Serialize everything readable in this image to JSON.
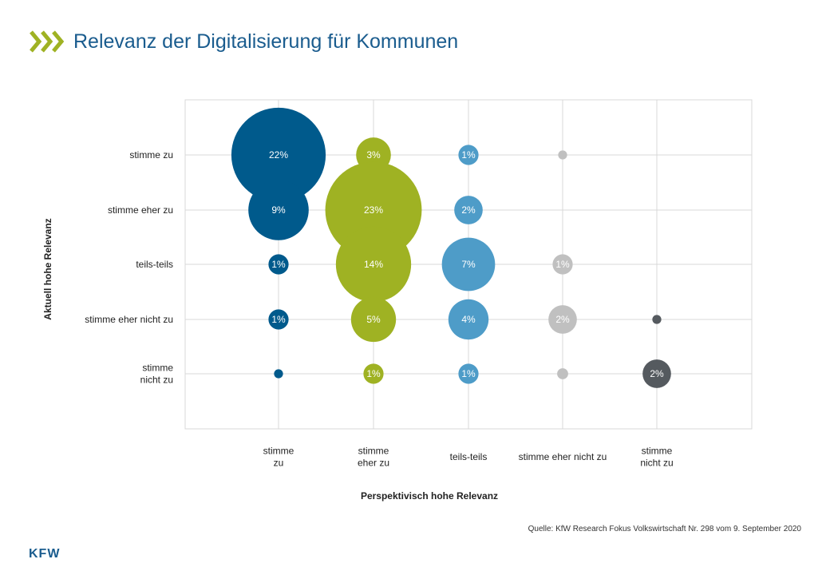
{
  "header": {
    "title": "Relevanz der Digitalisierung für Kommunen"
  },
  "source": "Quelle: KfW Research Fokus Volkswirtschaft Nr. 298 vom 9. September 2020",
  "logo": {
    "text": "KFW"
  },
  "colors": {
    "brand": "#1a5c8e",
    "accent": "#9fb223",
    "grid": "#d9d9d9"
  },
  "chart_data": {
    "type": "scatter",
    "title": "Relevanz der Digitalisierung für Kommunen",
    "xlabel": "Perspektivisch  hohe Relevanz",
    "ylabel": "Aktuell hohe Relevanz",
    "x_categories": [
      [
        "stimme",
        "zu"
      ],
      [
        "stimme",
        "eher zu"
      ],
      [
        "teils-teils"
      ],
      [
        "stimme eher nicht zu"
      ],
      [
        "stimme",
        "nicht zu"
      ]
    ],
    "y_categories": [
      [
        "stimme zu"
      ],
      [
        "stimme eher zu"
      ],
      [
        "teils-teils"
      ],
      [
        "stimme eher nicht zu"
      ],
      [
        "stimme",
        "nicht zu"
      ]
    ],
    "series_colors": [
      "#005a8c",
      "#9fb223",
      "#4e9cc8",
      "#c0c0c0",
      "#555a5f"
    ],
    "points": [
      {
        "x": 0,
        "y": 0,
        "value": 22,
        "label": "22%"
      },
      {
        "x": 0,
        "y": 1,
        "value": 9,
        "label": "9%"
      },
      {
        "x": 0,
        "y": 2,
        "value": 1,
        "label": "1%"
      },
      {
        "x": 0,
        "y": 3,
        "value": 1,
        "label": "1%"
      },
      {
        "x": 0,
        "y": 4,
        "value": 0.2,
        "label": ""
      },
      {
        "x": 1,
        "y": 0,
        "value": 3,
        "label": "3%"
      },
      {
        "x": 1,
        "y": 1,
        "value": 23,
        "label": "23%"
      },
      {
        "x": 1,
        "y": 2,
        "value": 14,
        "label": "14%"
      },
      {
        "x": 1,
        "y": 3,
        "value": 5,
        "label": "5%"
      },
      {
        "x": 1,
        "y": 4,
        "value": 1,
        "label": "1%"
      },
      {
        "x": 2,
        "y": 0,
        "value": 1,
        "label": "1%"
      },
      {
        "x": 2,
        "y": 1,
        "value": 2,
        "label": "2%"
      },
      {
        "x": 2,
        "y": 2,
        "value": 7,
        "label": "7%"
      },
      {
        "x": 2,
        "y": 3,
        "value": 4,
        "label": "4%"
      },
      {
        "x": 2,
        "y": 4,
        "value": 1,
        "label": "1%"
      },
      {
        "x": 3,
        "y": 0,
        "value": 0.2,
        "label": ""
      },
      {
        "x": 3,
        "y": 2,
        "value": 1,
        "label": "1%"
      },
      {
        "x": 3,
        "y": 3,
        "value": 2,
        "label": "2%"
      },
      {
        "x": 3,
        "y": 4,
        "value": 0.3,
        "label": ""
      },
      {
        "x": 4,
        "y": 3,
        "value": 0.2,
        "label": ""
      },
      {
        "x": 4,
        "y": 4,
        "value": 2,
        "label": "2%"
      }
    ],
    "grid": true,
    "legend": "none"
  }
}
